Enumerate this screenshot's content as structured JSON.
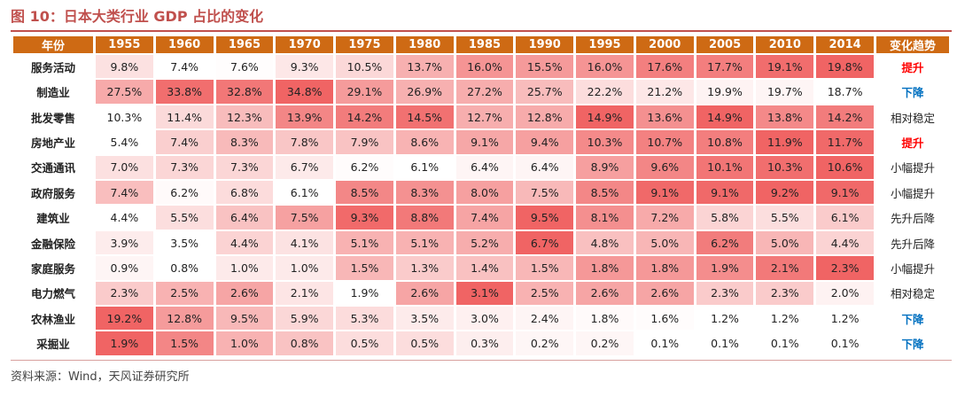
{
  "title": "图 10：日本大类行业 GDP 占比的变化",
  "source": "资料来源：Wind，天风证券研究所",
  "colors": {
    "accent": "#c0504d",
    "header": "#ce6a14",
    "up": "#ff0000",
    "down": "#0070c0",
    "neutral": "#222222"
  },
  "chart_data": {
    "type": "table",
    "title": "图 10：日本大类行业 GDP 占比的变化",
    "columns": [
      "年份",
      "1955",
      "1960",
      "1965",
      "1970",
      "1975",
      "1980",
      "1985",
      "1990",
      "1995",
      "2000",
      "2005",
      "2010",
      "2014",
      "变化趋势"
    ],
    "rows": [
      {
        "label": "服务活动",
        "values": [
          "9.8%",
          "7.4%",
          "7.6%",
          "9.3%",
          "10.5%",
          "13.7%",
          "16.0%",
          "15.5%",
          "16.0%",
          "17.6%",
          "17.7%",
          "19.1%",
          "19.8%"
        ],
        "trend": "提升",
        "trend_type": "up"
      },
      {
        "label": "制造业",
        "values": [
          "27.5%",
          "33.8%",
          "32.8%",
          "34.8%",
          "29.1%",
          "26.9%",
          "27.2%",
          "25.7%",
          "22.2%",
          "21.2%",
          "19.9%",
          "19.7%",
          "18.7%"
        ],
        "trend": "下降",
        "trend_type": "down"
      },
      {
        "label": "批发零售",
        "values": [
          "10.3%",
          "11.4%",
          "12.3%",
          "13.9%",
          "14.2%",
          "14.5%",
          "12.7%",
          "12.8%",
          "14.9%",
          "13.6%",
          "14.9%",
          "13.8%",
          "14.2%"
        ],
        "trend": "相对稳定",
        "trend_type": "neutral"
      },
      {
        "label": "房地产业",
        "values": [
          "5.4%",
          "7.4%",
          "8.3%",
          "7.8%",
          "7.9%",
          "8.6%",
          "9.1%",
          "9.4%",
          "10.3%",
          "10.7%",
          "10.8%",
          "11.9%",
          "11.7%"
        ],
        "trend": "提升",
        "trend_type": "up"
      },
      {
        "label": "交通通讯",
        "values": [
          "7.0%",
          "7.3%",
          "7.3%",
          "6.7%",
          "6.2%",
          "6.1%",
          "6.4%",
          "6.4%",
          "8.9%",
          "9.6%",
          "10.1%",
          "10.3%",
          "10.6%"
        ],
        "trend": "小幅提升",
        "trend_type": "neutral"
      },
      {
        "label": "政府服务",
        "values": [
          "7.4%",
          "6.2%",
          "6.8%",
          "6.1%",
          "8.5%",
          "8.3%",
          "8.0%",
          "7.5%",
          "8.5%",
          "9.1%",
          "9.1%",
          "9.2%",
          "9.1%"
        ],
        "trend": "小幅提升",
        "trend_type": "neutral"
      },
      {
        "label": "建筑业",
        "values": [
          "4.4%",
          "5.5%",
          "6.4%",
          "7.5%",
          "9.3%",
          "8.8%",
          "7.4%",
          "9.5%",
          "8.1%",
          "7.2%",
          "5.8%",
          "5.5%",
          "6.1%"
        ],
        "trend": "先升后降",
        "trend_type": "neutral"
      },
      {
        "label": "金融保险",
        "values": [
          "3.9%",
          "3.5%",
          "4.4%",
          "4.1%",
          "5.1%",
          "5.1%",
          "5.2%",
          "6.7%",
          "4.8%",
          "5.0%",
          "6.2%",
          "5.0%",
          "4.4%"
        ],
        "trend": "先升后降",
        "trend_type": "neutral"
      },
      {
        "label": "家庭服务",
        "values": [
          "0.9%",
          "0.8%",
          "1.0%",
          "1.0%",
          "1.5%",
          "1.3%",
          "1.4%",
          "1.5%",
          "1.8%",
          "1.8%",
          "1.9%",
          "2.1%",
          "2.3%"
        ],
        "trend": "小幅提升",
        "trend_type": "neutral"
      },
      {
        "label": "电力燃气",
        "values": [
          "2.3%",
          "2.5%",
          "2.6%",
          "2.1%",
          "1.9%",
          "2.6%",
          "3.1%",
          "2.5%",
          "2.6%",
          "2.6%",
          "2.3%",
          "2.3%",
          "2.0%"
        ],
        "trend": "相对稳定",
        "trend_type": "neutral"
      },
      {
        "label": "农林渔业",
        "values": [
          "19.2%",
          "12.8%",
          "9.5%",
          "5.9%",
          "5.3%",
          "3.5%",
          "3.0%",
          "2.4%",
          "1.8%",
          "1.6%",
          "1.2%",
          "1.2%",
          "1.2%"
        ],
        "trend": "下降",
        "trend_type": "down"
      },
      {
        "label": "采掘业",
        "values": [
          "1.9%",
          "1.5%",
          "1.0%",
          "0.8%",
          "0.5%",
          "0.5%",
          "0.3%",
          "0.2%",
          "0.2%",
          "0.1%",
          "0.1%",
          "0.1%",
          "0.1%"
        ],
        "trend": "下降",
        "trend_type": "down"
      }
    ]
  }
}
